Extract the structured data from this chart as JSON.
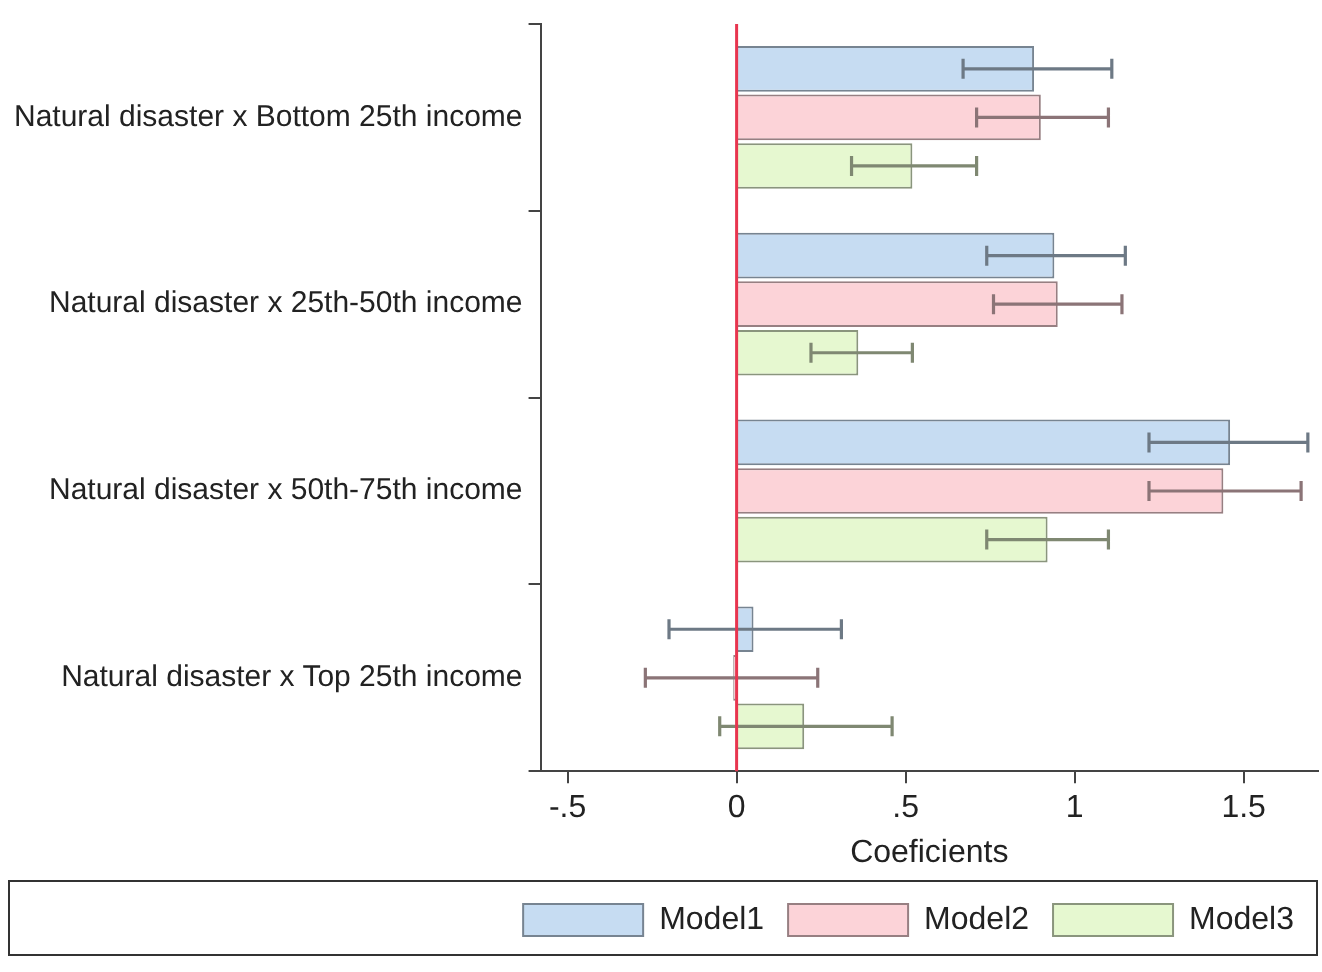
{
  "chart_data": {
    "type": "bar",
    "orientation": "horizontal",
    "xlabel": "Coeficients",
    "categories": [
      "Natural disaster x Bottom 25th income",
      "Natural disaster x 25th-50th income",
      "Natural disaster x 50th-75th income",
      "Natural disaster x Top 25th income"
    ],
    "series": [
      {
        "name": "Model1",
        "color": "#c6dcf2",
        "values": [
          0.88,
          0.94,
          1.46,
          0.05
        ],
        "errors": [
          [
            0.67,
            1.11
          ],
          [
            0.74,
            1.15
          ],
          [
            1.22,
            1.69
          ],
          [
            -0.2,
            0.31
          ]
        ]
      },
      {
        "name": "Model2",
        "color": "#fcd3d8",
        "values": [
          0.9,
          0.95,
          1.44,
          -0.01
        ],
        "errors": [
          [
            0.71,
            1.1
          ],
          [
            0.76,
            1.14
          ],
          [
            1.22,
            1.67
          ],
          [
            -0.27,
            0.24
          ]
        ]
      },
      {
        "name": "Model3",
        "color": "#e6f8d0",
        "values": [
          0.52,
          0.36,
          0.92,
          0.2
        ],
        "errors": [
          [
            0.34,
            0.71
          ],
          [
            0.22,
            0.52
          ],
          [
            0.74,
            1.1
          ],
          [
            -0.05,
            0.46
          ]
        ]
      }
    ],
    "xlim": [
      -0.58,
      1.72
    ],
    "xticks": [
      {
        "value": -0.5,
        "label": "-.5"
      },
      0,
      {
        "value": 0.5,
        "label": ".5"
      },
      1,
      1.5
    ],
    "ref_lines": [
      {
        "axis": "x",
        "value": 0,
        "color": "#e8354f"
      }
    ],
    "grid": false,
    "legend": "bottom"
  }
}
